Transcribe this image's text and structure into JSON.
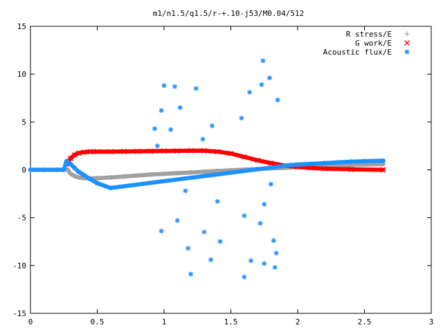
{
  "chart_data": {
    "type": "scatter",
    "title": "m1/n1.5/q1.5/r-+.10-j53/M0.04/512",
    "xlabel": "",
    "ylabel": "",
    "xlim": [
      0,
      3
    ],
    "ylim": [
      -15,
      15
    ],
    "x_ticks": [
      "0",
      "0.5",
      "1",
      "1.5",
      "2",
      "2.5",
      "3"
    ],
    "y_ticks": [
      "-15",
      "-10",
      "-5",
      "0",
      "5",
      "10",
      "15"
    ],
    "x_tick_values": [
      0,
      0.5,
      1,
      1.5,
      2,
      2.5,
      3
    ],
    "y_tick_values": [
      -15,
      -10,
      -5,
      0,
      5,
      10,
      15
    ],
    "grid": false,
    "legend_position": "top-right",
    "series": [
      {
        "name": "R stress/E",
        "marker": "plus",
        "color": "#a0a0a0",
        "x": [
          0.28,
          0.3,
          0.33,
          0.36,
          0.4,
          0.45,
          0.5,
          0.6,
          0.7,
          0.8,
          0.9,
          1.0,
          1.1,
          1.2,
          1.3,
          1.4,
          1.5,
          1.6,
          1.7,
          1.8,
          1.9,
          1.95,
          2.0,
          2.2,
          2.4,
          2.64
        ],
        "y": [
          0.0,
          -0.4,
          -0.65,
          -0.8,
          -0.88,
          -0.9,
          -0.88,
          -0.8,
          -0.7,
          -0.6,
          -0.5,
          -0.42,
          -0.35,
          -0.28,
          -0.2,
          -0.12,
          -0.05,
          0.02,
          0.08,
          0.15,
          0.2,
          0.25,
          0.3,
          0.4,
          0.5,
          0.6
        ]
      },
      {
        "name": "G work/E",
        "marker": "cross",
        "color": "#ff0000",
        "x": [
          0.27,
          0.3,
          0.33,
          0.36,
          0.4,
          0.45,
          0.5,
          0.6,
          0.7,
          0.8,
          0.9,
          1.0,
          1.1,
          1.2,
          1.3,
          1.4,
          1.5,
          1.6,
          1.7,
          1.8,
          1.9,
          2.0,
          2.1,
          2.2,
          2.4,
          2.64
        ],
        "y": [
          0.6,
          1.2,
          1.55,
          1.75,
          1.85,
          1.9,
          1.9,
          1.9,
          1.92,
          1.93,
          1.95,
          1.97,
          1.98,
          2.0,
          2.0,
          1.9,
          1.7,
          1.35,
          1.0,
          0.7,
          0.45,
          0.3,
          0.2,
          0.12,
          0.05,
          0.0
        ]
      },
      {
        "name": "Acoustic flux/E",
        "marker": "star",
        "color": "#1e90ff",
        "x": [
          0.0,
          0.05,
          0.1,
          0.15,
          0.2,
          0.25,
          0.27,
          0.3,
          0.33,
          0.36,
          0.4,
          0.45,
          0.5,
          0.6,
          1.95,
          2.0,
          2.1,
          2.2,
          2.3,
          2.4,
          2.5,
          2.64
        ],
        "y": [
          0.0,
          0.0,
          0.0,
          0.0,
          0.0,
          0.0,
          0.9,
          0.6,
          0.2,
          -0.2,
          -0.55,
          -1.0,
          -1.4,
          -1.9,
          0.5,
          0.55,
          0.62,
          0.7,
          0.78,
          0.85,
          0.9,
          0.95
        ]
      },
      {
        "name": "",
        "marker": "star",
        "color": "#1e90ff",
        "x": [
          1.0,
          1.08,
          1.12,
          1.24,
          1.74,
          1.79,
          1.64,
          1.85,
          1.73,
          0.93,
          0.98,
          1.05,
          1.58,
          1.3,
          1.42,
          1.2,
          0.98,
          1.6,
          1.75,
          1.65,
          1.1,
          1.83,
          1.35,
          1.18,
          1.72,
          0.95,
          1.29,
          1.36,
          1.6,
          1.82,
          1.84,
          1.75,
          1.16,
          1.4,
          1.8
        ],
        "y": [
          8.8,
          8.7,
          6.5,
          8.5,
          11.4,
          9.6,
          8.1,
          7.3,
          8.9,
          4.3,
          6.2,
          4.2,
          5.4,
          -6.5,
          -7.5,
          -10.9,
          -6.4,
          -11.2,
          -9.8,
          -9.5,
          -5.3,
          -10.2,
          -9.4,
          -8.2,
          -5.6,
          2.5,
          3.2,
          4.6,
          -4.8,
          -7.4,
          -8.7,
          -3.6,
          -2.2,
          -3.3,
          -1.5
        ]
      }
    ]
  }
}
